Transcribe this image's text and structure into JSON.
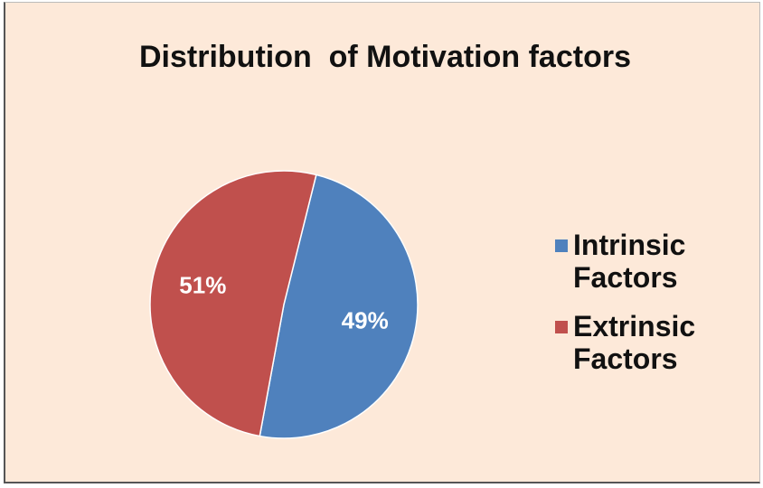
{
  "chart_data": {
    "type": "pie",
    "title": "Distribution  of Motivation factors",
    "categories": [
      "Intrinsic Factors",
      "Extrinsic Factors"
    ],
    "values": [
      49,
      51
    ],
    "value_labels": [
      "49%",
      "51%"
    ],
    "colors": [
      "#4f81bd",
      "#c0504d"
    ],
    "legend": "right"
  }
}
